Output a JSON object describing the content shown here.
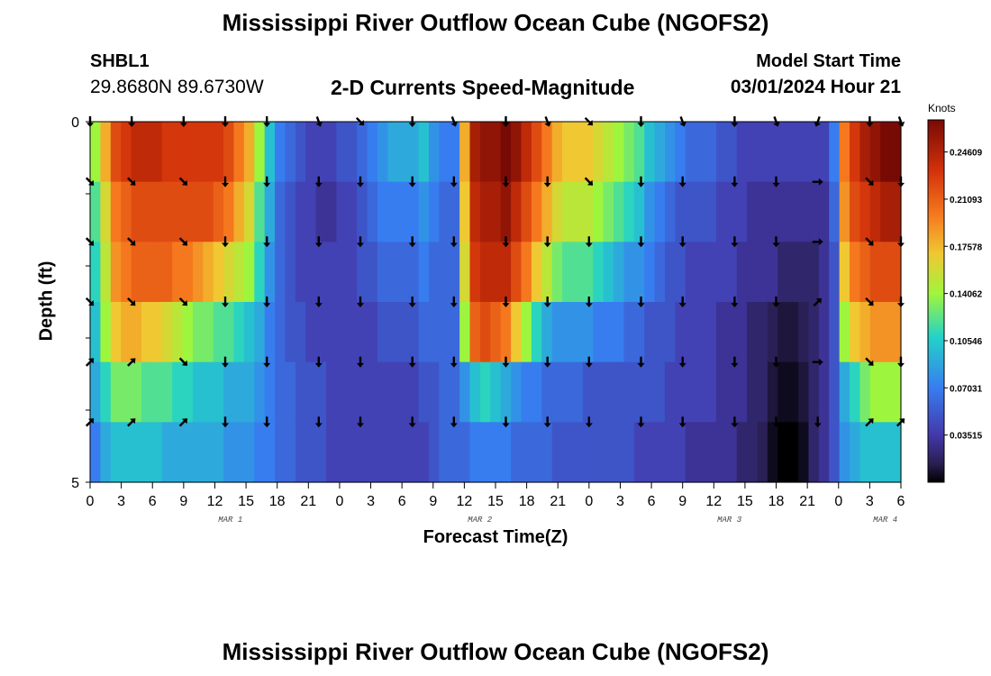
{
  "header": {
    "title": "Mississippi River Outflow Ocean Cube (NGOFS2)",
    "station_id": "SHBL1",
    "station_coords": "29.8680N  89.6730W",
    "plot_title": "2-D Currents Speed-Magnitude",
    "model_label": "Model Start Time",
    "model_time": "03/01/2024 Hour 21"
  },
  "footer": {
    "title": "Mississippi River Outflow Ocean Cube (NGOFS2)"
  },
  "chart_data": {
    "type": "heatmap",
    "xlabel": "Forecast Time(Z)",
    "ylabel": "Depth (ft)",
    "x_tick_labels": [
      "0",
      "3",
      "6",
      "9",
      "12",
      "15",
      "18",
      "21",
      "0",
      "3",
      "6",
      "9",
      "12",
      "15",
      "18",
      "21",
      "0",
      "3",
      "6",
      "9",
      "12",
      "15",
      "18",
      "21",
      "0",
      "3",
      "6"
    ],
    "day_labels": [
      {
        "text": "MAR 1",
        "tick_index": 4.5
      },
      {
        "text": "MAR 2",
        "tick_index": 12.5
      },
      {
        "text": "MAR 3",
        "tick_index": 20.5
      },
      {
        "text": "MAR 4",
        "tick_index": 25.5
      }
    ],
    "y_tick_labels": [
      "0",
      "5"
    ],
    "ylim": [
      0,
      5
    ],
    "colorbar": {
      "label": "Knots",
      "tick_labels": [
        "0.24609",
        "0.21093",
        "0.17578",
        "0.14062",
        "0.10546",
        "0.07031",
        "0.03515"
      ],
      "tick_values": [
        0.24609,
        0.21093,
        0.17578,
        0.14062,
        0.10546,
        0.07031,
        0.03515
      ],
      "range": [
        0,
        0.27
      ]
    },
    "forecast_hours": [
      0,
      1,
      2,
      3,
      4,
      5,
      6,
      7,
      8,
      9,
      10,
      11,
      12,
      13,
      14,
      15,
      16,
      17,
      18,
      19,
      20,
      21,
      22,
      23,
      24,
      25,
      26,
      27,
      28,
      29,
      30,
      31,
      32,
      33,
      34,
      35,
      36,
      37,
      38,
      39,
      40,
      41,
      42,
      43,
      44,
      45,
      46,
      47,
      48,
      49,
      50,
      51,
      52,
      53,
      54,
      55,
      56,
      57,
      58,
      59,
      60,
      61,
      62,
      63,
      64,
      65,
      66,
      67,
      68,
      69,
      70,
      71,
      72,
      73,
      74,
      75,
      76,
      77,
      78
    ],
    "depth_levels_ft": [
      0,
      1,
      2,
      3,
      4,
      5
    ],
    "speed_rows": [
      [
        0.14,
        0.18,
        0.22,
        0.23,
        0.24,
        0.24,
        0.24,
        0.23,
        0.23,
        0.23,
        0.23,
        0.23,
        0.23,
        0.22,
        0.2,
        0.18,
        0.14,
        0.1,
        0.07,
        0.06,
        0.05,
        0.04,
        0.04,
        0.04,
        0.05,
        0.05,
        0.06,
        0.07,
        0.08,
        0.09,
        0.09,
        0.09,
        0.1,
        0.08,
        0.07,
        0.07,
        0.18,
        0.25,
        0.26,
        0.26,
        0.27,
        0.26,
        0.24,
        0.22,
        0.2,
        0.18,
        0.17,
        0.17,
        0.17,
        0.16,
        0.15,
        0.14,
        0.13,
        0.12,
        0.1,
        0.09,
        0.08,
        0.07,
        0.06,
        0.06,
        0.06,
        0.05,
        0.05,
        0.04,
        0.04,
        0.04,
        0.04,
        0.04,
        0.04,
        0.04,
        0.04,
        0.04,
        0.07,
        0.2,
        0.23,
        0.25,
        0.26,
        0.27,
        0.27
      ],
      [
        0.12,
        0.16,
        0.2,
        0.21,
        0.22,
        0.22,
        0.22,
        0.22,
        0.22,
        0.22,
        0.22,
        0.22,
        0.21,
        0.2,
        0.18,
        0.16,
        0.12,
        0.09,
        0.06,
        0.05,
        0.04,
        0.04,
        0.03,
        0.03,
        0.04,
        0.04,
        0.05,
        0.06,
        0.07,
        0.07,
        0.07,
        0.07,
        0.08,
        0.07,
        0.06,
        0.06,
        0.17,
        0.24,
        0.25,
        0.25,
        0.26,
        0.24,
        0.22,
        0.2,
        0.18,
        0.16,
        0.15,
        0.15,
        0.15,
        0.14,
        0.13,
        0.12,
        0.11,
        0.1,
        0.08,
        0.07,
        0.06,
        0.05,
        0.05,
        0.05,
        0.05,
        0.04,
        0.04,
        0.04,
        0.03,
        0.03,
        0.03,
        0.03,
        0.03,
        0.03,
        0.03,
        0.03,
        0.06,
        0.19,
        0.22,
        0.23,
        0.24,
        0.25,
        0.25
      ],
      [
        0.11,
        0.15,
        0.19,
        0.2,
        0.21,
        0.21,
        0.21,
        0.21,
        0.2,
        0.2,
        0.19,
        0.18,
        0.17,
        0.16,
        0.15,
        0.14,
        0.11,
        0.08,
        0.06,
        0.05,
        0.04,
        0.04,
        0.04,
        0.04,
        0.04,
        0.04,
        0.05,
        0.05,
        0.06,
        0.06,
        0.06,
        0.06,
        0.07,
        0.06,
        0.06,
        0.06,
        0.16,
        0.23,
        0.24,
        0.24,
        0.24,
        0.22,
        0.2,
        0.17,
        0.15,
        0.13,
        0.12,
        0.12,
        0.12,
        0.11,
        0.1,
        0.09,
        0.08,
        0.08,
        0.07,
        0.06,
        0.05,
        0.05,
        0.04,
        0.04,
        0.04,
        0.04,
        0.04,
        0.03,
        0.03,
        0.03,
        0.03,
        0.02,
        0.02,
        0.02,
        0.02,
        0.03,
        0.05,
        0.17,
        0.2,
        0.21,
        0.22,
        0.22,
        0.22
      ],
      [
        0.1,
        0.14,
        0.17,
        0.18,
        0.18,
        0.17,
        0.17,
        0.16,
        0.15,
        0.14,
        0.13,
        0.13,
        0.12,
        0.12,
        0.11,
        0.1,
        0.09,
        0.07,
        0.06,
        0.05,
        0.05,
        0.04,
        0.04,
        0.04,
        0.04,
        0.04,
        0.04,
        0.04,
        0.05,
        0.05,
        0.05,
        0.05,
        0.06,
        0.06,
        0.06,
        0.06,
        0.14,
        0.21,
        0.22,
        0.21,
        0.2,
        0.17,
        0.14,
        0.11,
        0.09,
        0.08,
        0.08,
        0.08,
        0.08,
        0.07,
        0.07,
        0.07,
        0.06,
        0.06,
        0.05,
        0.05,
        0.05,
        0.04,
        0.04,
        0.04,
        0.04,
        0.03,
        0.03,
        0.03,
        0.02,
        0.02,
        0.015,
        0.01,
        0.01,
        0.015,
        0.02,
        0.03,
        0.05,
        0.14,
        0.17,
        0.18,
        0.19,
        0.19,
        0.19
      ],
      [
        0.09,
        0.11,
        0.13,
        0.13,
        0.13,
        0.12,
        0.12,
        0.12,
        0.11,
        0.11,
        0.1,
        0.1,
        0.1,
        0.09,
        0.09,
        0.09,
        0.08,
        0.07,
        0.06,
        0.06,
        0.05,
        0.05,
        0.05,
        0.04,
        0.04,
        0.04,
        0.04,
        0.04,
        0.04,
        0.04,
        0.04,
        0.04,
        0.05,
        0.05,
        0.06,
        0.06,
        0.08,
        0.1,
        0.11,
        0.1,
        0.09,
        0.08,
        0.07,
        0.07,
        0.06,
        0.06,
        0.06,
        0.06,
        0.05,
        0.05,
        0.05,
        0.05,
        0.05,
        0.05,
        0.05,
        0.05,
        0.04,
        0.04,
        0.04,
        0.04,
        0.04,
        0.03,
        0.03,
        0.03,
        0.02,
        0.02,
        0.01,
        0.005,
        0.005,
        0.01,
        0.02,
        0.03,
        0.05,
        0.09,
        0.11,
        0.13,
        0.14,
        0.14,
        0.14
      ],
      [
        0.07,
        0.09,
        0.1,
        0.1,
        0.1,
        0.1,
        0.1,
        0.09,
        0.09,
        0.09,
        0.09,
        0.09,
        0.09,
        0.08,
        0.08,
        0.08,
        0.07,
        0.07,
        0.06,
        0.06,
        0.05,
        0.05,
        0.05,
        0.04,
        0.04,
        0.04,
        0.04,
        0.04,
        0.04,
        0.04,
        0.04,
        0.04,
        0.04,
        0.05,
        0.06,
        0.06,
        0.06,
        0.07,
        0.07,
        0.07,
        0.07,
        0.06,
        0.06,
        0.06,
        0.06,
        0.05,
        0.05,
        0.05,
        0.05,
        0.05,
        0.05,
        0.05,
        0.05,
        0.04,
        0.04,
        0.04,
        0.04,
        0.04,
        0.03,
        0.03,
        0.03,
        0.03,
        0.03,
        0.02,
        0.02,
        0.015,
        0.005,
        0.0,
        0.0,
        0.005,
        0.02,
        0.03,
        0.05,
        0.08,
        0.09,
        0.1,
        0.1,
        0.1,
        0.1
      ]
    ],
    "arrow_hours": [
      0,
      4,
      9,
      13,
      17,
      22,
      26,
      31,
      35,
      40,
      44,
      48,
      53,
      57,
      62,
      66,
      70,
      75,
      78
    ],
    "arrow_directions_deg": [
      [
        180,
        180,
        180,
        180,
        180,
        160,
        135,
        180,
        160,
        180,
        160,
        135,
        180,
        160,
        180,
        160,
        200,
        180,
        160
      ],
      [
        135,
        135,
        135,
        180,
        180,
        180,
        180,
        180,
        180,
        180,
        180,
        135,
        180,
        180,
        180,
        180,
        90,
        135,
        180
      ],
      [
        135,
        135,
        135,
        180,
        180,
        180,
        180,
        180,
        180,
        180,
        180,
        180,
        180,
        180,
        180,
        180,
        90,
        135,
        180
      ],
      [
        135,
        135,
        135,
        180,
        180,
        180,
        180,
        180,
        180,
        180,
        180,
        180,
        180,
        180,
        180,
        180,
        45,
        135,
        180
      ],
      [
        45,
        45,
        135,
        180,
        180,
        180,
        180,
        180,
        180,
        180,
        180,
        180,
        180,
        180,
        180,
        180,
        90,
        135,
        180
      ],
      [
        45,
        45,
        45,
        180,
        180,
        180,
        180,
        180,
        180,
        180,
        180,
        180,
        180,
        180,
        180,
        180,
        180,
        45,
        45
      ]
    ]
  }
}
